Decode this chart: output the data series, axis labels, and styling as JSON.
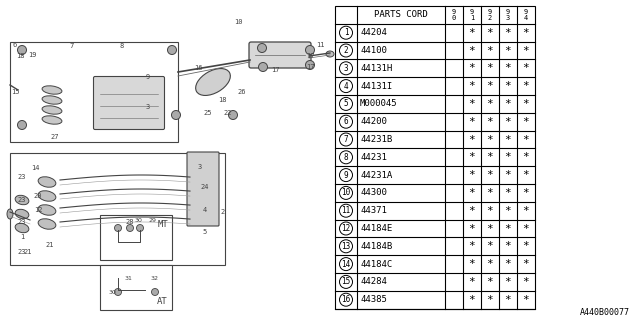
{
  "diagram_label": "A440B00077",
  "bg_color": "#ffffff",
  "parts": [
    {
      "num": 1,
      "code": "44204"
    },
    {
      "num": 2,
      "code": "44100"
    },
    {
      "num": 3,
      "code": "44131H"
    },
    {
      "num": 4,
      "code": "44131I"
    },
    {
      "num": 5,
      "code": "M000045"
    },
    {
      "num": 6,
      "code": "44200"
    },
    {
      "num": 7,
      "code": "44231B"
    },
    {
      "num": 8,
      "code": "44231"
    },
    {
      "num": 9,
      "code": "44231A"
    },
    {
      "num": 10,
      "code": "44300"
    },
    {
      "num": 11,
      "code": "44371"
    },
    {
      "num": 12,
      "code": "44184E"
    },
    {
      "num": 13,
      "code": "44184B"
    },
    {
      "num": 14,
      "code": "44184C"
    },
    {
      "num": 15,
      "code": "44284"
    },
    {
      "num": 16,
      "code": "44385"
    }
  ],
  "col_headers": [
    "9\n0",
    "9\n1",
    "9\n2",
    "9\n3",
    "9\n4"
  ],
  "line_color": "#000000",
  "text_color": "#000000",
  "table_font_size": 6.5,
  "header_font_size": 6.5
}
